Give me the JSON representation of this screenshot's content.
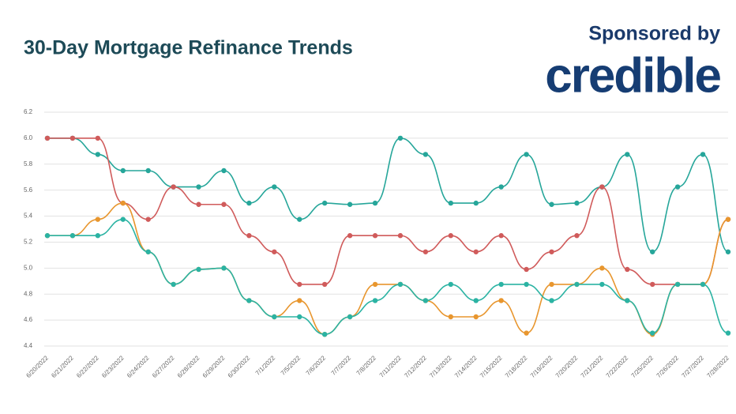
{
  "chart_data": {
    "type": "line",
    "title": "30-Day Mortgage Refinance Trends",
    "sponsor_label": "Sponsored by",
    "sponsor": "credible",
    "categories": [
      "6/20/2022",
      "6/21/2022",
      "6/22/2022",
      "6/23/2022",
      "6/24/2022",
      "6/27/2022",
      "6/28/2022",
      "6/29/2022",
      "6/30/2022",
      "7/1/2022",
      "7/5/2022",
      "7/6/2022",
      "7/7/2022",
      "7/8/2022",
      "7/11/2022",
      "7/12/2022",
      "7/13/2022",
      "7/14/2022",
      "7/15/2022",
      "7/18/2022",
      "7/19/2022",
      "7/20/2022",
      "7/21/2022",
      "7/22/2022",
      "7/25/2022",
      "7/26/2022",
      "7/27/2022",
      "7/28/2022"
    ],
    "series": [
      {
        "color": "#26a69a",
        "values": [
          6.0,
          6.0,
          5.875,
          5.75,
          5.75,
          5.625,
          5.625,
          5.75,
          5.5,
          5.625,
          5.375,
          5.5,
          5.49,
          5.5,
          6.0,
          5.875,
          5.5,
          5.5,
          5.625,
          5.875,
          5.49,
          5.5,
          5.625,
          5.875,
          5.125,
          5.625,
          5.875,
          5.125
        ]
      },
      {
        "color": "#d05b5b",
        "values": [
          6.0,
          6.0,
          6.0,
          5.5,
          5.375,
          5.625,
          5.49,
          5.49,
          5.25,
          5.125,
          4.875,
          4.875,
          5.25,
          5.25,
          5.25,
          5.125,
          5.25,
          5.125,
          5.25,
          4.99,
          5.125,
          5.25,
          5.625,
          4.99,
          4.875,
          4.875,
          4.875,
          5.375
        ]
      },
      {
        "color": "#e8962e",
        "values": [
          5.25,
          5.25,
          5.375,
          5.5,
          5.125,
          4.875,
          4.99,
          5.0,
          4.75,
          4.625,
          4.75,
          4.49,
          4.625,
          4.875,
          4.875,
          4.75,
          4.625,
          4.625,
          4.75,
          4.5,
          4.875,
          4.875,
          5.0,
          4.75,
          4.49,
          4.875,
          4.875,
          5.375
        ]
      },
      {
        "color": "#2bb3a3",
        "values": [
          5.25,
          5.25,
          5.25,
          5.375,
          5.125,
          4.875,
          4.99,
          5.0,
          4.75,
          4.625,
          4.625,
          4.49,
          4.625,
          4.75,
          4.875,
          4.75,
          4.875,
          4.75,
          4.875,
          4.875,
          4.75,
          4.875,
          4.875,
          4.75,
          4.5,
          4.875,
          4.875,
          4.5
        ]
      }
    ],
    "ylim": [
      4.4,
      6.2
    ],
    "yticks": [
      4.4,
      4.6,
      4.8,
      {
        "value": 5,
        "label": "5.0"
      },
      5.2,
      5.4,
      5.6,
      5.8,
      {
        "value": 6,
        "label": "6.0"
      },
      6.2
    ],
    "grid": true
  }
}
